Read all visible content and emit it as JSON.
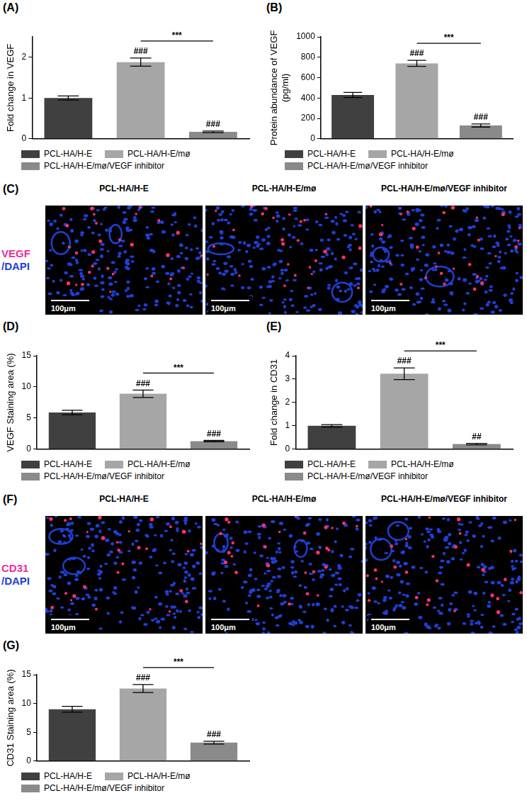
{
  "chart_data": [
    {
      "panel": "(A)",
      "type": "bar",
      "categories": [
        "PCL-HA/H-E",
        "PCL-HA/H-E/mø",
        "PCL-HA/H-E/mø/VEGF inhibitor"
      ],
      "colors": [
        "#404040",
        "#a6a6a6",
        "#8a8a8a"
      ],
      "values": [
        1.0,
        1.88,
        0.17
      ],
      "errors": [
        0.05,
        0.1,
        0.02
      ],
      "y_label": "Fold change in VEGF",
      "ylim": [
        0,
        2.5
      ],
      "yticks": [
        0,
        1,
        2
      ],
      "grid": false,
      "legend": "bottom",
      "tick_labels": "y",
      "annotations": [
        {
          "text": "###",
          "category": 1
        },
        {
          "text": "###",
          "category": 2
        },
        {
          "text": "***",
          "from": 1,
          "to": 2
        }
      ]
    },
    {
      "panel": "(B)",
      "type": "bar",
      "categories": [
        "PCL-HA/H-E",
        "PCL-HA/H-E/mø",
        "PCL-HA/H-E/mø/VEGF inhibitor"
      ],
      "colors": [
        "#404040",
        "#a6a6a6",
        "#8a8a8a"
      ],
      "values": [
        430,
        740,
        130
      ],
      "errors": [
        25,
        30,
        15
      ],
      "y_label": [
        "Protein abundance of VEGF",
        "(pg/ml)"
      ],
      "ylim": [
        0,
        1000
      ],
      "yticks": [
        0,
        200,
        400,
        600,
        800,
        1000
      ],
      "grid": false,
      "legend": "bottom",
      "tick_labels": "y",
      "annotations": [
        {
          "text": "###",
          "category": 1
        },
        {
          "text": "###",
          "category": 2
        },
        {
          "text": "***",
          "from": 1,
          "to": 2
        }
      ]
    },
    {
      "panel": "(D)",
      "type": "bar",
      "categories": [
        "PCL-HA/H-E",
        "PCL-HA/H-E/mø",
        "PCL-HA/H-E/mø/VEGF inhibitor"
      ],
      "colors": [
        "#404040",
        "#a6a6a6",
        "#8a8a8a"
      ],
      "values": [
        5.9,
        8.9,
        1.3
      ],
      "errors": [
        0.35,
        0.6,
        0.1
      ],
      "y_label": "VEGF Staining area (%)",
      "ylim": [
        0,
        15
      ],
      "yticks": [
        0,
        5,
        10,
        15
      ],
      "grid": false,
      "legend": "bottom",
      "tick_labels": "y",
      "annotations": [
        {
          "text": "###",
          "category": 1
        },
        {
          "text": "###",
          "category": 2
        },
        {
          "text": "***",
          "from": 1,
          "to": 2
        }
      ]
    },
    {
      "panel": "(E)",
      "type": "bar",
      "categories": [
        "PCL-HA/H-E",
        "PCL-HA/H-E/mø",
        "PCL-HA/H-E/mø/VEGF inhibitor"
      ],
      "colors": [
        "#404040",
        "#a6a6a6",
        "#8a8a8a"
      ],
      "values": [
        1.0,
        3.23,
        0.22
      ],
      "errors": [
        0.05,
        0.25,
        0.03
      ],
      "y_label": "Fold change in CD31",
      "ylim": [
        0,
        4
      ],
      "yticks": [
        0,
        1,
        2,
        3,
        4
      ],
      "grid": false,
      "legend": "bottom",
      "tick_labels": "y",
      "annotations": [
        {
          "text": "###",
          "category": 1
        },
        {
          "text": "##",
          "category": 2
        },
        {
          "text": "***",
          "from": 1,
          "to": 2
        }
      ]
    },
    {
      "panel": "(G)",
      "type": "bar",
      "categories": [
        "PCL-HA/H-E",
        "PCL-HA/H-E/mø",
        "PCL-HA/H-E/mø/VEGF inhibitor"
      ],
      "colors": [
        "#404040",
        "#a6a6a6",
        "#8a8a8a"
      ],
      "values": [
        9.0,
        12.6,
        3.2
      ],
      "errors": [
        0.5,
        0.7,
        0.25
      ],
      "y_label": "CD31 Staining area (%)",
      "ylim": [
        0,
        15
      ],
      "yticks": [
        0,
        5,
        10,
        15
      ],
      "grid": false,
      "legend": "bottom",
      "tick_labels": "y",
      "annotations": [
        {
          "text": "###",
          "category": 1
        },
        {
          "text": "###",
          "category": 2
        },
        {
          "text": "***",
          "from": 1,
          "to": 2
        }
      ]
    }
  ],
  "micrographs": [
    {
      "panel": "(C)",
      "stain": [
        {
          "text": "VEGF",
          "color": "#e8309a"
        },
        {
          "text": "/DAPI",
          "color": "#1f3fd6"
        }
      ],
      "titles": [
        "PCL-HA/H-E",
        "PCL-HA/H-E/mø",
        "PCL-HA/H-E/mø/VEGF inhibitor"
      ],
      "scale_bar": "100μm"
    },
    {
      "panel": "(F)",
      "stain": [
        {
          "text": "CD31",
          "color": "#e8309a"
        },
        {
          "text": "/DAPI",
          "color": "#1f3fd6"
        }
      ],
      "titles": [
        "PCL-HA/H-E",
        "PCL-HA/H-E/mø",
        "PCL-HA/H-E/mø/VEGF inhibitor"
      ],
      "scale_bar": "100μm"
    }
  ]
}
